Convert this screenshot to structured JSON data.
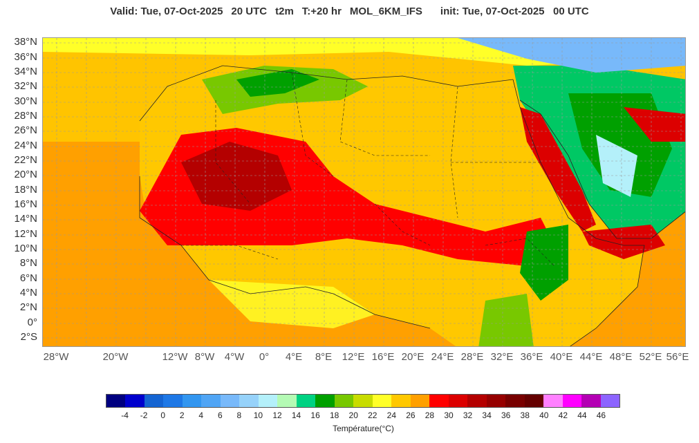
{
  "header": {
    "valid": "Valid: Tue, 07-Oct-2025",
    "hour": "20 UTC",
    "variable": "t2m",
    "lead": "T:+20 hr",
    "model": "MOL_6KM_IFS",
    "init": "init: Tue, 07-Oct-2025   00 UTC"
  },
  "map": {
    "lat_labels": [
      "38°N",
      "36°N",
      "34°N",
      "32°N",
      "30°N",
      "28°N",
      "26°N",
      "24°N",
      "22°N",
      "20°N",
      "18°N",
      "16°N",
      "14°N",
      "12°N",
      "10°N",
      "8°N",
      "6°N",
      "4°N",
      "2°N",
      "0°",
      "2°S"
    ],
    "lon_labels": [
      "28°W",
      "20°W",
      "12°W",
      "8°W",
      "4°W",
      "0°",
      "4°E",
      "8°E",
      "12°E",
      "16°E",
      "20°E",
      "24°E",
      "28°E",
      "32°E",
      "36°E",
      "40°E",
      "44°E",
      "48°E",
      "52°E",
      "56°E"
    ]
  },
  "colorbar": {
    "title": "Température(°C)",
    "ticks": [
      "-4",
      "-2",
      "0",
      "2",
      "4",
      "6",
      "8",
      "10",
      "12",
      "14",
      "16",
      "18",
      "20",
      "22",
      "24",
      "26",
      "28",
      "30",
      "32",
      "34",
      "36",
      "38",
      "40",
      "42",
      "44",
      "46"
    ],
    "colors": [
      "#000080",
      "#0000cd",
      "#1464d2",
      "#1e78e6",
      "#3296f0",
      "#50a5f5",
      "#78b9fa",
      "#96d2fa",
      "#b4f0fa",
      "#b4fab4",
      "#00d282",
      "#00a000",
      "#78c800",
      "#c8dc00",
      "#ffff28",
      "#ffc800",
      "#ffa000",
      "#ff0000",
      "#dc0000",
      "#b40000",
      "#960000",
      "#780000",
      "#640000",
      "#ff80ff",
      "#ff00ff",
      "#b400b4",
      "#8c64ff"
    ]
  }
}
